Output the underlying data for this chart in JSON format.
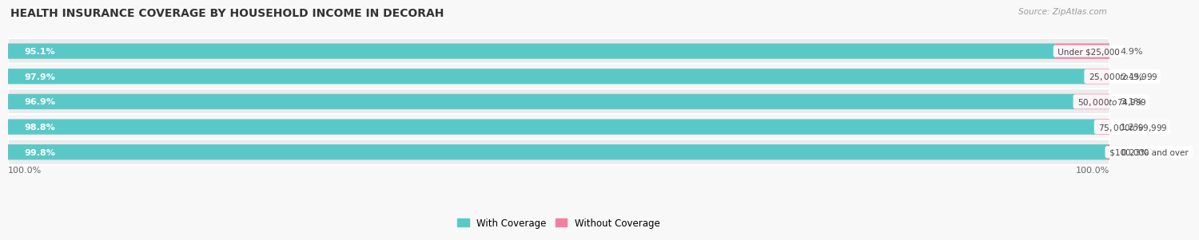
{
  "title": "HEALTH INSURANCE COVERAGE BY HOUSEHOLD INCOME IN DECORAH",
  "source": "Source: ZipAtlas.com",
  "categories": [
    "Under $25,000",
    "$25,000 to $49,999",
    "$50,000 to $74,999",
    "$75,000 to $99,999",
    "$100,000 and over"
  ],
  "with_coverage": [
    95.1,
    97.9,
    96.9,
    98.8,
    99.8
  ],
  "without_coverage": [
    4.9,
    2.1,
    3.1,
    1.2,
    0.23
  ],
  "with_color": "#5bc8c8",
  "without_color": "#f080a0",
  "row_bg_even": "#ebebeb",
  "row_bg_odd": "#f5f5f5",
  "fig_bg": "#f8f8f8",
  "title_fontsize": 10,
  "label_fontsize": 8,
  "tick_fontsize": 8,
  "legend_fontsize": 8.5,
  "x_left_label": "100.0%",
  "x_right_label": "100.0%"
}
